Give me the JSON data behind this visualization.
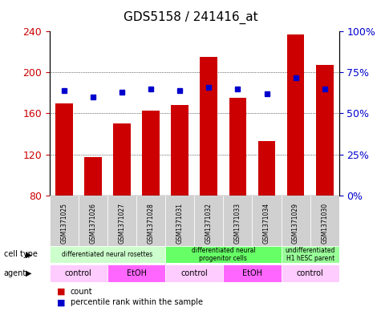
{
  "title": "GDS5158 / 241416_at",
  "samples": [
    "GSM1371025",
    "GSM1371026",
    "GSM1371027",
    "GSM1371028",
    "GSM1371031",
    "GSM1371032",
    "GSM1371033",
    "GSM1371034",
    "GSM1371029",
    "GSM1371030"
  ],
  "counts": [
    170,
    117,
    150,
    163,
    168,
    215,
    175,
    133,
    237,
    207
  ],
  "percentiles": [
    64,
    60,
    63,
    65,
    64,
    66,
    65,
    62,
    72,
    65
  ],
  "ymin": 80,
  "ymax": 240,
  "yticks": [
    80,
    120,
    160,
    200,
    240
  ],
  "y2ticks": [
    0,
    25,
    50,
    75,
    100
  ],
  "y2labels": [
    "0%",
    "25%",
    "50%",
    "75%",
    "100%"
  ],
  "bar_color": "#cc0000",
  "dot_color": "#0000cc",
  "cell_type_groups": [
    {
      "label": "differentiated neural rosettes",
      "start": 0,
      "end": 3,
      "color": "#ccffcc"
    },
    {
      "label": "differentiated neural\nprogenitor cells",
      "start": 4,
      "end": 7,
      "color": "#66ff66"
    },
    {
      "label": "undifferentiated\nH1 hESC parent",
      "start": 8,
      "end": 9,
      "color": "#99ff99"
    }
  ],
  "agent_groups": [
    {
      "label": "control",
      "start": 0,
      "end": 1,
      "color": "#ffccff"
    },
    {
      "label": "EtOH",
      "start": 2,
      "end": 3,
      "color": "#ff66ff"
    },
    {
      "label": "control",
      "start": 4,
      "end": 5,
      "color": "#ffccff"
    },
    {
      "label": "EtOH",
      "start": 6,
      "end": 7,
      "color": "#ff66ff"
    },
    {
      "label": "control",
      "start": 8,
      "end": 9,
      "color": "#ffccff"
    }
  ],
  "legend_count_color": "#cc0000",
  "legend_dot_color": "#0000cc"
}
